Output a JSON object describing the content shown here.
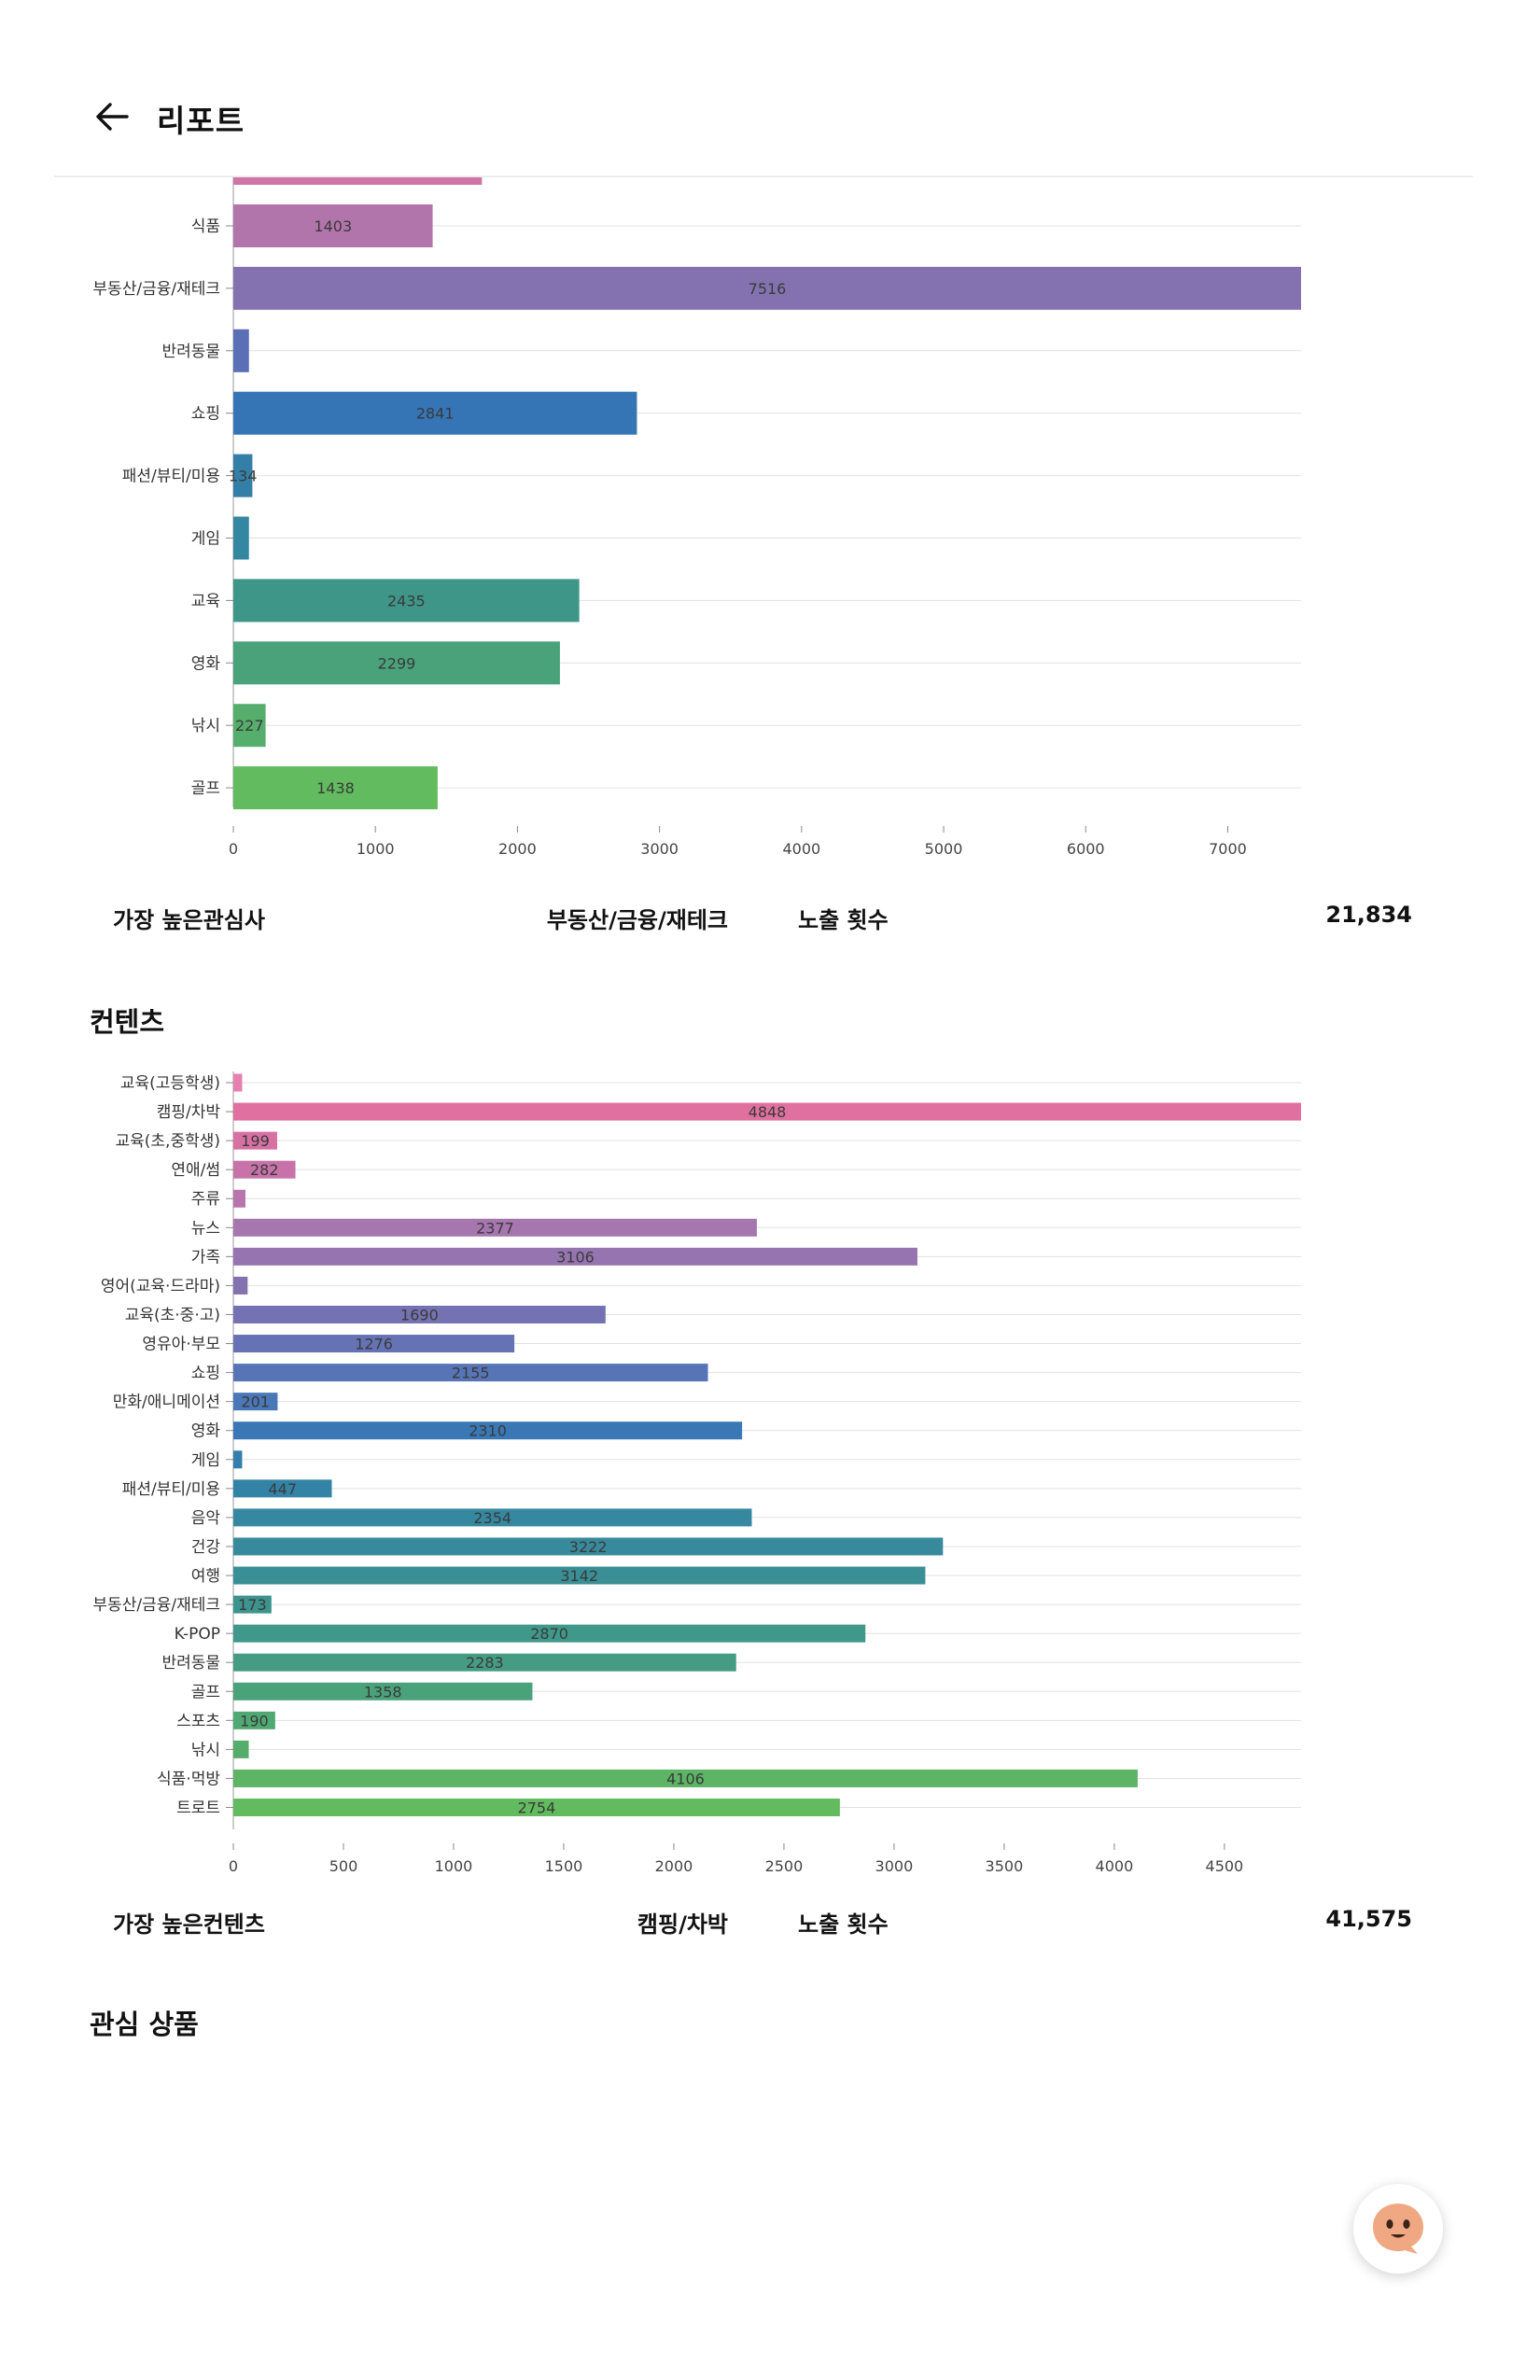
{
  "header": {
    "title": "리포트"
  },
  "interest_summary": {
    "label": "가장 높은관심사",
    "value": "부동산/금융/재테크",
    "impressions_label": "노출 횟수",
    "impressions_value": "21,834"
  },
  "contents_section": {
    "title": "컨텐츠"
  },
  "contents_summary": {
    "label": "가장 높은컨텐츠",
    "value": "캠핑/차박",
    "impressions_label": "노출 횟수",
    "impressions_value": "41,575"
  },
  "products_section": {
    "title": "관심 상품"
  },
  "colors": {
    "accent_pink": "#e0709f",
    "accent_green": "#62bb5e",
    "divider": "#ececec"
  },
  "chart_data": [
    {
      "type": "bar",
      "orientation": "horizontal",
      "partially_visible": true,
      "categories": [
        "식품",
        "부동산/금융/재테크",
        "반려동물",
        "쇼핑",
        "패션/뷰티/미용",
        "게임",
        "교육",
        "영화",
        "낚시",
        "골프"
      ],
      "values": [
        1403,
        7516,
        110,
        2841,
        134,
        110,
        2435,
        2299,
        227,
        1438
      ],
      "bar_labels": [
        "1403",
        "7516",
        "",
        "2841",
        "134",
        "",
        "2435",
        "2299",
        "227",
        "1438"
      ],
      "bar_colors": [
        "#b174ab",
        "#8472b0",
        "#5a6fb5",
        "#3675b5",
        "#347fa8",
        "#3487a0",
        "#3e9688",
        "#4aa27b",
        "#55ae6c",
        "#62bb5e"
      ],
      "top_cut_bar": {
        "value": 1750,
        "color": "#cf74a7"
      },
      "xlim": [
        0,
        7516
      ],
      "xticks": [
        0,
        1000,
        2000,
        3000,
        4000,
        5000,
        6000,
        7000
      ],
      "grid": true
    },
    {
      "type": "bar",
      "orientation": "horizontal",
      "categories": [
        "교육(고등학생)",
        "캠핑/차박",
        "교육(초,중학생)",
        "연애/썸",
        "주류",
        "뉴스",
        "가족",
        "영어(교육·드라마)",
        "교육(초·중·고)",
        "영유아·부모",
        "쇼핑",
        "만화/애니메이션",
        "영화",
        "게임",
        "패션/뷰티/미용",
        "음악",
        "건강",
        "여행",
        "부동산/금융/재테크",
        "K-POP",
        "반려동물",
        "골프",
        "스포츠",
        "낚시",
        "식품·먹방",
        "트로트"
      ],
      "values": [
        40,
        4848,
        199,
        282,
        55,
        2377,
        3106,
        65,
        1690,
        1276,
        2155,
        201,
        2310,
        40,
        447,
        2354,
        3222,
        3142,
        173,
        2870,
        2283,
        1358,
        190,
        70,
        4106,
        2754
      ],
      "bar_labels": [
        "",
        "4848",
        "199",
        "282",
        "",
        "2377",
        "3106",
        "",
        "1690",
        "1276",
        "2155",
        "201",
        "2310",
        "",
        "447",
        "2354",
        "3222",
        "3142",
        "173",
        "2870",
        "2283",
        "1358",
        "190",
        "",
        "4106",
        "2754"
      ],
      "bar_colors": [
        "#e77fb0",
        "#e0709f",
        "#d771a4",
        "#c773a9",
        "#b775ac",
        "#a676ae",
        "#9574af",
        "#8472b0",
        "#7472b2",
        "#6573b4",
        "#5775b6",
        "#4a77b6",
        "#3a77b5",
        "#347ead",
        "#3383a6",
        "#3688a1",
        "#37899c",
        "#3a8e95",
        "#3d938d",
        "#3f988a",
        "#459c82",
        "#4aa27b",
        "#50a872",
        "#56ad6b",
        "#5cb464",
        "#62bb5e"
      ],
      "xlim": [
        0,
        4848
      ],
      "xticks": [
        0,
        500,
        1000,
        1500,
        2000,
        2500,
        3000,
        3500,
        4000,
        4500
      ],
      "grid": true
    }
  ]
}
